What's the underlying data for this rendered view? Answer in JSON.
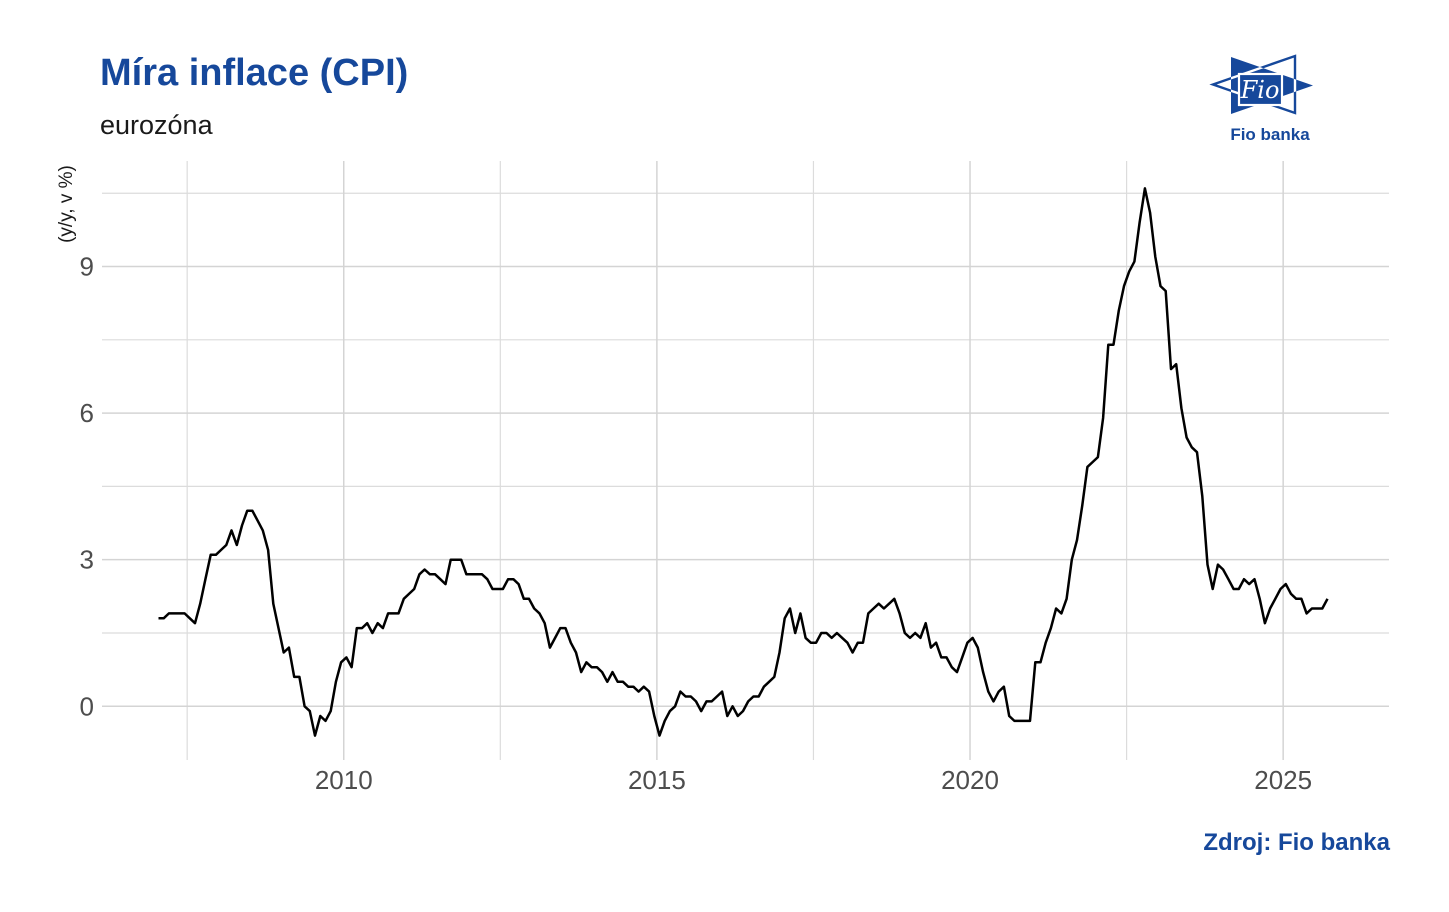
{
  "header": {
    "title": "Míra inflace (CPI)",
    "subtitle": "eurozóna"
  },
  "logo": {
    "monogram": "Fio",
    "wordmark": "Fio banka"
  },
  "footer": {
    "source": "Zdroj: Fio banka"
  },
  "colors": {
    "brand_blue": "#16489b",
    "line": "#000000",
    "grid_major": "#d4d4d4",
    "grid_minor": "#dcdcdc",
    "tick_label": "#4d4d4d",
    "axis_title": "#1a1a1a"
  },
  "chart_data": {
    "type": "line",
    "title": "Míra inflace (CPI)",
    "subtitle": "eurozóna",
    "series_name": "Míra inflace CPI, eurozóna (y/y, v %)",
    "xlabel": "",
    "ylabel": "(y/y, v %)",
    "frequency": "monthly",
    "x_start": {
      "year": 2007,
      "month": 1
    },
    "x_end": {
      "year": 2025,
      "month": 9
    },
    "values": [
      1.8,
      1.8,
      1.9,
      1.9,
      1.9,
      1.9,
      1.8,
      1.7,
      2.1,
      2.6,
      3.1,
      3.1,
      3.2,
      3.3,
      3.6,
      3.3,
      3.7,
      4.0,
      4.0,
      3.8,
      3.6,
      3.2,
      2.1,
      1.6,
      1.1,
      1.2,
      0.6,
      0.6,
      0.0,
      -0.1,
      -0.6,
      -0.2,
      -0.3,
      -0.1,
      0.5,
      0.9,
      1.0,
      0.8,
      1.6,
      1.6,
      1.7,
      1.5,
      1.7,
      1.6,
      1.9,
      1.9,
      1.9,
      2.2,
      2.3,
      2.4,
      2.7,
      2.8,
      2.7,
      2.7,
      2.6,
      2.5,
      3.0,
      3.0,
      3.0,
      2.7,
      2.7,
      2.7,
      2.7,
      2.6,
      2.4,
      2.4,
      2.4,
      2.6,
      2.6,
      2.5,
      2.2,
      2.2,
      2.0,
      1.9,
      1.7,
      1.2,
      1.4,
      1.6,
      1.6,
      1.3,
      1.1,
      0.7,
      0.9,
      0.8,
      0.8,
      0.7,
      0.5,
      0.7,
      0.5,
      0.5,
      0.4,
      0.4,
      0.3,
      0.4,
      0.3,
      -0.2,
      -0.6,
      -0.3,
      -0.1,
      0.0,
      0.3,
      0.2,
      0.2,
      0.1,
      -0.1,
      0.1,
      0.1,
      0.2,
      0.3,
      -0.2,
      0.0,
      -0.2,
      -0.1,
      0.1,
      0.2,
      0.2,
      0.4,
      0.5,
      0.6,
      1.1,
      1.8,
      2.0,
      1.5,
      1.9,
      1.4,
      1.3,
      1.3,
      1.5,
      1.5,
      1.4,
      1.5,
      1.4,
      1.3,
      1.1,
      1.3,
      1.3,
      1.9,
      2.0,
      2.1,
      2.0,
      2.1,
      2.2,
      1.9,
      1.5,
      1.4,
      1.5,
      1.4,
      1.7,
      1.2,
      1.3,
      1.0,
      1.0,
      0.8,
      0.7,
      1.0,
      1.3,
      1.4,
      1.2,
      0.7,
      0.3,
      0.1,
      0.3,
      0.4,
      -0.2,
      -0.3,
      -0.3,
      -0.3,
      -0.3,
      0.9,
      0.9,
      1.3,
      1.6,
      2.0,
      1.9,
      2.2,
      3.0,
      3.4,
      4.1,
      4.9,
      5.0,
      5.1,
      5.9,
      7.4,
      7.4,
      8.1,
      8.6,
      8.9,
      9.1,
      9.9,
      10.6,
      10.1,
      9.2,
      8.6,
      8.5,
      6.9,
      7.0,
      6.1,
      5.5,
      5.3,
      5.2,
      4.3,
      2.9,
      2.4,
      2.9,
      2.8,
      2.6,
      2.4,
      2.4,
      2.6,
      2.5,
      2.6,
      2.2,
      1.7,
      2.0,
      2.2,
      2.4,
      2.5,
      2.3,
      2.2,
      2.2,
      1.9,
      2.0,
      2.0,
      2.0,
      2.2
    ],
    "x_major_ticks": [
      2010,
      2015,
      2020,
      2025
    ],
    "x_tick_labels": [
      "2010",
      "2015",
      "2020",
      "2025"
    ],
    "x_minor_ticks": [
      2007.5,
      2012.5,
      2017.5,
      2022.5
    ],
    "y_major_ticks": [
      0,
      3,
      6,
      9
    ],
    "y_tick_labels": [
      "0",
      "3",
      "6",
      "9"
    ],
    "y_minor_ticks": [
      1.5,
      4.5,
      7.5,
      10.5
    ],
    "xlim": [
      2006.14,
      2026.69
    ],
    "ylim": [
      -1.1,
      11.16
    ],
    "grid": true,
    "legend": false
  }
}
